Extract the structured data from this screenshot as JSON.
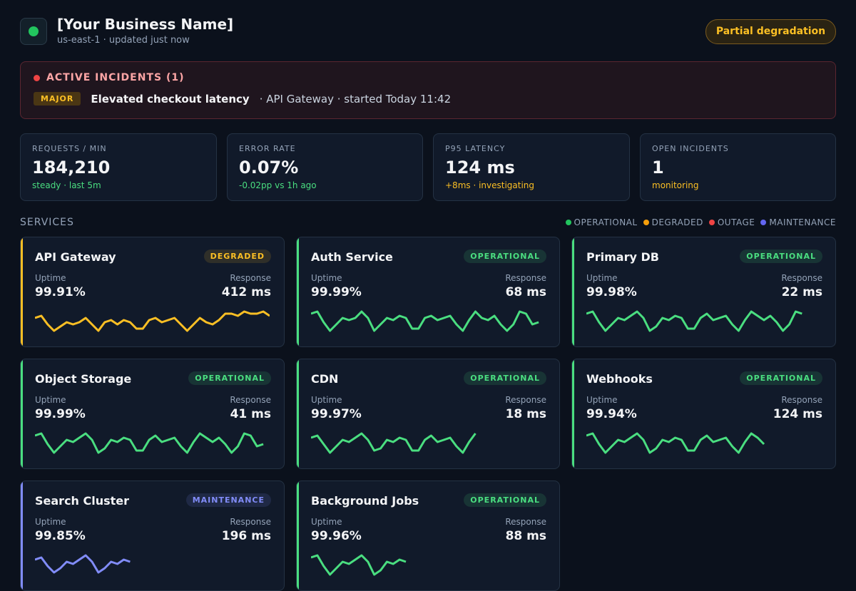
{
  "header": {
    "title": "[Your Business Name]",
    "subtitle": "us-east-1 · updated just now",
    "status_badge": "Partial degradation"
  },
  "incidents": {
    "title": "ACTIVE INCIDENTS (1)",
    "items": [
      {
        "severity": "MAJOR",
        "title": "Elevated checkout latency",
        "detail": "· API Gateway · started Today 11:42"
      }
    ]
  },
  "metrics": [
    {
      "label": "REQUESTS / MIN",
      "value": "184,210",
      "note": "steady · last 5m",
      "note_color": "#4ade80"
    },
    {
      "label": "ERROR RATE",
      "value": "0.07%",
      "note": "-0.02pp vs 1h ago",
      "note_color": "#4ade80"
    },
    {
      "label": "P95 LATENCY",
      "value": "124 ms",
      "note": "+8ms · investigating",
      "note_color": "#fbbf24"
    },
    {
      "label": "OPEN INCIDENTS",
      "value": "1",
      "note": "monitoring",
      "note_color": "#fbbf24"
    }
  ],
  "services": {
    "title": "SERVICES",
    "legend": [
      {
        "label": "OPERATIONAL",
        "color": "#22c55e"
      },
      {
        "label": "DEGRADED",
        "color": "#f59e0b"
      },
      {
        "label": "OUTAGE",
        "color": "#ef4444"
      },
      {
        "label": "MAINTENANCE",
        "color": "#6366f1"
      }
    ],
    "items": [
      {
        "name": "API Gateway",
        "status": "DEGRADED",
        "color": "#fbbf24",
        "uptime_label": "Uptime",
        "uptime": "99.91%",
        "response_label": "Response",
        "response": "412 ms",
        "sparkline": [
          6,
          7,
          3,
          0,
          2,
          4,
          3,
          4,
          6,
          3,
          0,
          4,
          5,
          3,
          5,
          4,
          1,
          1,
          5,
          6,
          4,
          5,
          6,
          3,
          0,
          3,
          6,
          4,
          3,
          5,
          8,
          8,
          7,
          9,
          8,
          8,
          9,
          7
        ]
      },
      {
        "name": "Auth Service",
        "status": "OPERATIONAL",
        "color": "#4ade80",
        "uptime_label": "Uptime",
        "uptime": "99.99%",
        "response_label": "Response",
        "response": "68 ms",
        "sparkline": [
          8,
          9,
          4,
          0,
          3,
          6,
          5,
          6,
          9,
          6,
          0,
          3,
          6,
          5,
          7,
          6,
          1,
          1,
          6,
          7,
          5,
          6,
          7,
          3,
          0,
          5,
          9,
          6,
          5,
          7,
          3,
          0,
          3,
          9,
          8,
          3,
          4
        ]
      },
      {
        "name": "Primary DB",
        "status": "OPERATIONAL",
        "color": "#4ade80",
        "uptime_label": "Uptime",
        "uptime": "99.98%",
        "response_label": "Response",
        "response": "22 ms",
        "sparkline": [
          8,
          9,
          4,
          0,
          3,
          6,
          5,
          7,
          9,
          6,
          0,
          2,
          6,
          5,
          7,
          6,
          1,
          1,
          6,
          8,
          5,
          6,
          7,
          3,
          0,
          5,
          9,
          7,
          5,
          7,
          4,
          0,
          3,
          9,
          8
        ]
      },
      {
        "name": "Object Storage",
        "status": "OPERATIONAL",
        "color": "#4ade80",
        "uptime_label": "Uptime",
        "uptime": "99.99%",
        "response_label": "Response",
        "response": "41 ms",
        "sparkline": [
          8,
          9,
          4,
          0,
          3,
          6,
          5,
          7,
          9,
          6,
          0,
          2,
          6,
          5,
          7,
          6,
          1,
          1,
          6,
          8,
          5,
          6,
          7,
          3,
          0,
          5,
          9,
          7,
          5,
          7,
          4,
          0,
          3,
          9,
          8,
          3,
          4
        ]
      },
      {
        "name": "CDN",
        "status": "OPERATIONAL",
        "color": "#4ade80",
        "uptime_label": "Uptime",
        "uptime": "99.97%",
        "response_label": "Response",
        "response": "18 ms",
        "sparkline": [
          7,
          8,
          4,
          0,
          3,
          6,
          5,
          7,
          9,
          6,
          1,
          2,
          6,
          5,
          7,
          6,
          1,
          1,
          6,
          8,
          5,
          6,
          7,
          3,
          0,
          5,
          9
        ]
      },
      {
        "name": "Webhooks",
        "status": "OPERATIONAL",
        "color": "#4ade80",
        "uptime_label": "Uptime",
        "uptime": "99.94%",
        "response_label": "Response",
        "response": "124 ms",
        "sparkline": [
          8,
          9,
          4,
          0,
          3,
          6,
          5,
          7,
          9,
          6,
          0,
          2,
          6,
          5,
          7,
          6,
          1,
          1,
          6,
          8,
          5,
          6,
          7,
          3,
          0,
          5,
          9,
          7,
          4
        ]
      },
      {
        "name": "Search Cluster",
        "status": "MAINTENANCE",
        "color": "#818cf8",
        "uptime_label": "Uptime",
        "uptime": "99.85%",
        "response_label": "Response",
        "response": "196 ms",
        "sparkline": [
          7,
          8,
          4,
          1,
          3,
          6,
          5,
          7,
          9,
          6,
          1,
          3,
          6,
          5,
          7,
          6
        ]
      },
      {
        "name": "Background Jobs",
        "status": "OPERATIONAL",
        "color": "#4ade80",
        "uptime_label": "Uptime",
        "uptime": "99.96%",
        "response_label": "Response",
        "response": "88 ms",
        "sparkline": [
          8,
          9,
          4,
          0,
          3,
          6,
          5,
          7,
          9,
          6,
          0,
          2,
          6,
          5,
          7,
          6
        ]
      }
    ]
  }
}
